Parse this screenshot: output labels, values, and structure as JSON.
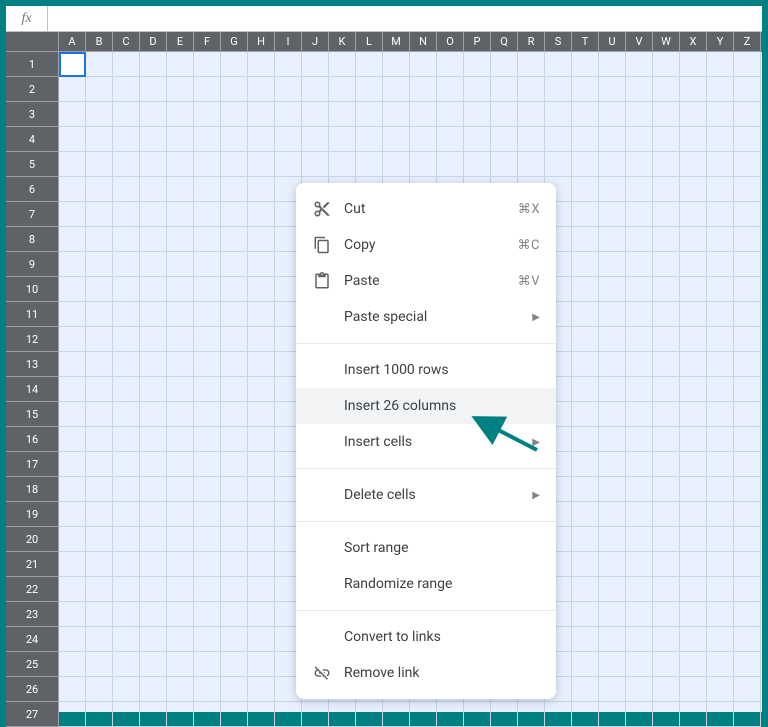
{
  "colors": {
    "frame": "#008080",
    "header_bg": "#5f6368",
    "header_border": "#9aa0a6",
    "header_text": "#ffffff",
    "grid_bg": "#e8f0fe",
    "grid_line": "#c5d5e8",
    "selection_border": "#1a73e8",
    "menu_bg": "#ffffff",
    "menu_text": "#3c4043",
    "menu_hover": "#f1f3f4",
    "menu_shortcut": "#80868b",
    "arrow_color": "#008080"
  },
  "formula_bar": {
    "fx_label": "fx",
    "value": "",
    "placeholder": ""
  },
  "columns": [
    "A",
    "B",
    "C",
    "D",
    "E",
    "F",
    "G",
    "H",
    "I",
    "J",
    "K",
    "L",
    "M",
    "N",
    "O",
    "P",
    "Q",
    "R",
    "S",
    "T",
    "U",
    "V",
    "W",
    "X",
    "Y",
    "Z"
  ],
  "rows": [
    1,
    2,
    3,
    4,
    5,
    6,
    7,
    8,
    9,
    10,
    11,
    12,
    13,
    14,
    15,
    16,
    17,
    18,
    19,
    20,
    21,
    22,
    23,
    24,
    25,
    26,
    27
  ],
  "selected_cell": {
    "row": 1,
    "col": "A"
  },
  "context_menu": {
    "cut": {
      "label": "Cut",
      "shortcut": "⌘X"
    },
    "copy": {
      "label": "Copy",
      "shortcut": "⌘C"
    },
    "paste": {
      "label": "Paste",
      "shortcut": "⌘V"
    },
    "paste_special": {
      "label": "Paste special"
    },
    "insert_rows": {
      "label": "Insert 1000 rows"
    },
    "insert_columns": {
      "label": "Insert 26 columns"
    },
    "insert_cells": {
      "label": "Insert cells"
    },
    "delete_cells": {
      "label": "Delete cells"
    },
    "sort_range": {
      "label": "Sort range"
    },
    "randomize_range": {
      "label": "Randomize range"
    },
    "convert_links": {
      "label": "Convert to links"
    },
    "remove_link": {
      "label": "Remove link"
    }
  }
}
